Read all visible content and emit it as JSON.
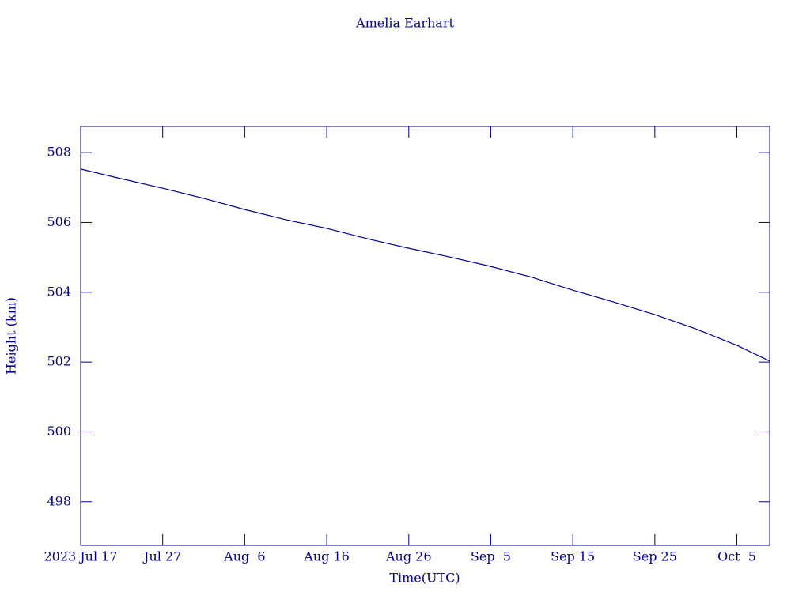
{
  "chart_data": {
    "type": "line",
    "title": "Amelia Earhart",
    "xlabel": "Time(UTC)",
    "ylabel": "Height (km)",
    "x": [
      "2023-07-17",
      "2023-07-22",
      "2023-07-27",
      "2023-08-01",
      "2023-08-06",
      "2023-08-11",
      "2023-08-16",
      "2023-08-21",
      "2023-08-26",
      "2023-08-31",
      "2023-09-05",
      "2023-09-10",
      "2023-09-15",
      "2023-09-20",
      "2023-09-25",
      "2023-09-30",
      "2023-10-05",
      "2023-10-09"
    ],
    "series": [
      {
        "name": "Height",
        "color": "#00008b",
        "values": [
          507.53,
          507.25,
          506.98,
          506.69,
          506.37,
          506.08,
          505.83,
          505.53,
          505.26,
          505.01,
          504.74,
          504.43,
          504.06,
          503.72,
          503.36,
          502.95,
          502.48,
          502.03
        ]
      }
    ],
    "xlim": [
      "2023-07-17",
      "2023-10-09"
    ],
    "xticks": [
      {
        "value": "2023-07-17",
        "label": "2023 Jul 17"
      },
      {
        "value": "2023-07-27",
        "label": "Jul 27"
      },
      {
        "value": "2023-08-06",
        "label": "Aug  6"
      },
      {
        "value": "2023-08-16",
        "label": "Aug 16"
      },
      {
        "value": "2023-08-26",
        "label": "Aug 26"
      },
      {
        "value": "2023-09-05",
        "label": "Sep  5"
      },
      {
        "value": "2023-09-15",
        "label": "Sep 15"
      },
      {
        "value": "2023-09-25",
        "label": "Sep 25"
      },
      {
        "value": "2023-10-05",
        "label": "Oct  5"
      }
    ],
    "ylim": [
      496.75,
      508.75
    ],
    "yticks": [
      498,
      500,
      502,
      504,
      506,
      508
    ],
    "grid": false
  }
}
